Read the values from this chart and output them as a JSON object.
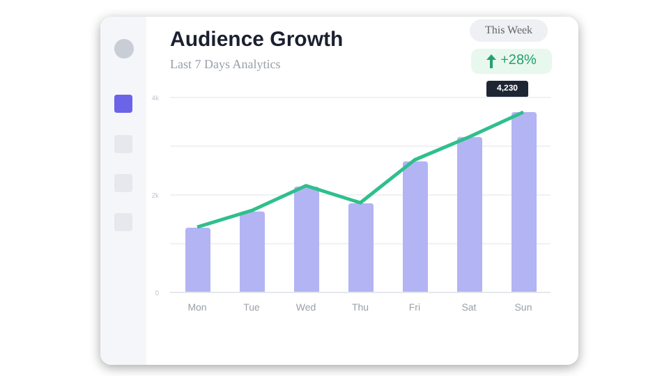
{
  "chart_data": {
    "type": "bar",
    "title": "Audience Growth",
    "subtitle": "Last 7 Days Analytics",
    "categories": [
      "Mon",
      "Tue",
      "Wed",
      "Thu",
      "Fri",
      "Sat",
      "Sun"
    ],
    "series": [
      {
        "color": "#b3b4f4",
        "values": [
          1330,
          1660,
          2170,
          1830,
          2690,
          3190,
          3700
        ]
      },
      {
        "type": "line",
        "color": "#2fbf8c",
        "values": [
          1340,
          1680,
          2190,
          1840,
          2720,
          3190,
          3700
        ]
      }
    ],
    "ylim": [
      0,
      4000
    ],
    "yticks": [
      0,
      {
        "value": 1000,
        "label": null
      },
      {
        "value": 2000,
        "label": "2k"
      },
      {
        "value": 3000,
        "label": null
      },
      {
        "value": 4000,
        "label": "4k"
      }
    ],
    "grid": "y",
    "legend": false,
    "marker": "none",
    "line_style": "solid",
    "annotations": [
      "This Week",
      "+28%",
      "4,230"
    ]
  }
}
